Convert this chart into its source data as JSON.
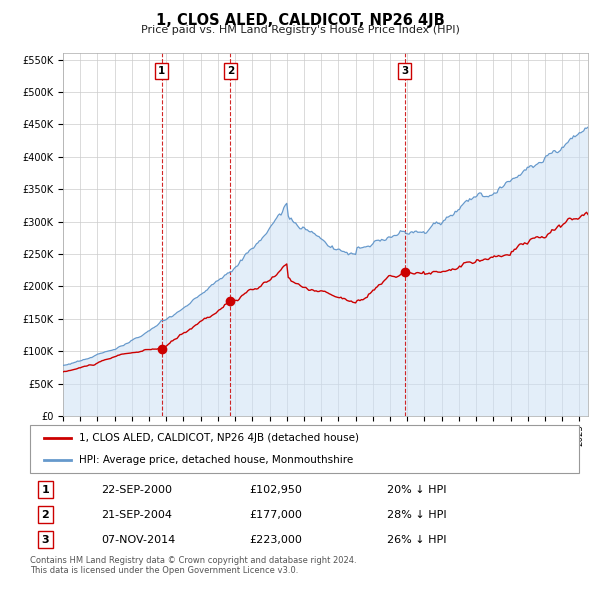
{
  "title": "1, CLOS ALED, CALDICOT, NP26 4JB",
  "subtitle": "Price paid vs. HM Land Registry's House Price Index (HPI)",
  "legend_line1": "1, CLOS ALED, CALDICOT, NP26 4JB (detached house)",
  "legend_line2": "HPI: Average price, detached house, Monmouthshire",
  "sale_points": [
    {
      "label": "1",
      "date_str": "22-SEP-2000",
      "date_num": 2000.73,
      "price": 102950,
      "pct": "20% ↓ HPI"
    },
    {
      "label": "2",
      "date_str": "21-SEP-2004",
      "date_num": 2004.73,
      "price": 177000,
      "pct": "28% ↓ HPI"
    },
    {
      "label": "3",
      "date_str": "07-NOV-2014",
      "date_num": 2014.86,
      "price": 223000,
      "pct": "26% ↓ HPI"
    }
  ],
  "footer_line1": "Contains HM Land Registry data © Crown copyright and database right 2024.",
  "footer_line2": "This data is licensed under the Open Government Licence v3.0.",
  "red_color": "#cc0000",
  "blue_color": "#6699cc",
  "blue_fill": "#cce0f5",
  "grid_color": "#cccccc",
  "background_color": "#ffffff",
  "xlim_start": 1995.0,
  "xlim_end": 2025.5,
  "ylim_max": 560000,
  "ytick_step": 50000
}
